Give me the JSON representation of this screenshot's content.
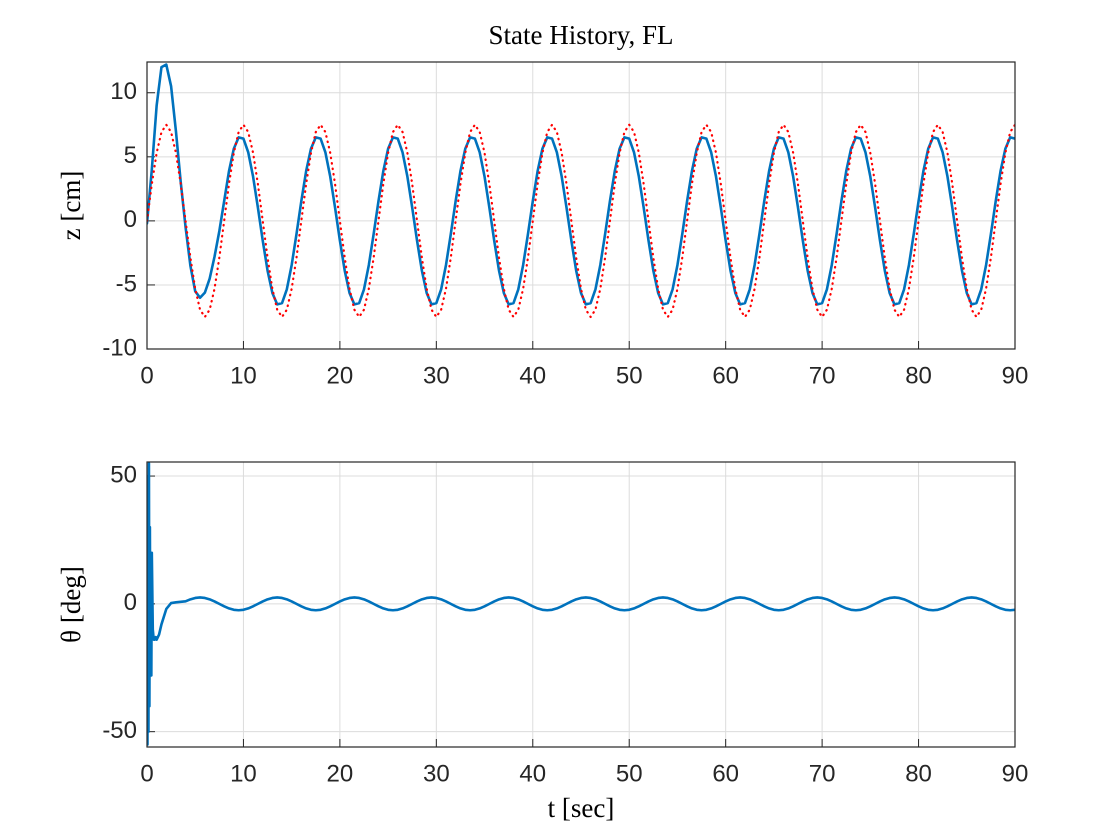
{
  "chart_data": [
    {
      "type": "line",
      "title": "State History, FL",
      "ylabel": "z [cm]",
      "x": [
        0,
        0.5,
        1,
        1.5,
        2,
        2.5,
        3,
        3.5,
        4,
        4.5,
        5,
        5.5,
        6,
        6.5,
        7,
        7.5,
        8,
        8.5,
        9,
        9.5,
        10,
        10.5,
        11,
        11.5,
        12,
        12.5,
        13,
        13.5,
        14,
        14.5,
        15,
        15.5,
        16,
        16.5,
        17,
        17.5,
        18,
        18.5,
        19,
        19.5,
        20,
        20.5,
        21,
        21.5,
        22,
        22.5,
        23,
        23.5,
        24,
        24.5,
        25,
        25.5,
        26,
        26.5,
        27,
        27.5,
        28,
        28.5,
        29,
        29.5,
        30,
        30.5,
        31,
        31.5,
        32,
        32.5,
        33,
        33.5,
        34,
        34.5,
        35,
        35.5,
        36,
        36.5,
        37,
        37.5,
        38,
        38.5,
        39,
        39.5,
        40,
        40.5,
        41,
        41.5,
        42,
        42.5,
        43,
        43.5,
        44,
        44.5,
        45,
        45.5,
        46,
        46.5,
        47,
        47.5,
        48,
        48.5,
        49,
        49.5,
        50,
        50.5,
        51,
        51.5,
        52,
        52.5,
        53,
        53.5,
        54,
        54.5,
        55,
        55.5,
        56,
        56.5,
        57,
        57.5,
        58,
        58.5,
        59,
        59.5,
        60,
        60.5,
        61,
        61.5,
        62,
        62.5,
        63,
        63.5,
        64,
        64.5,
        65,
        65.5,
        66,
        66.5,
        67,
        67.5,
        68,
        68.5,
        69,
        69.5,
        70,
        70.5,
        71,
        71.5,
        72,
        72.5,
        73,
        73.5,
        74,
        74.5,
        75,
        75.5,
        76,
        76.5,
        77,
        77.5,
        78,
        78.5,
        79,
        79.5,
        80,
        80.5,
        81,
        81.5,
        82,
        82.5,
        83,
        83.5,
        84,
        84.5,
        85,
        85.5,
        86,
        86.5,
        87,
        87.5,
        88,
        88.5,
        89,
        89.5,
        90
      ],
      "series": [
        {
          "color": "#0072bd",
          "dash": "solid",
          "values": [
            -0.2,
            4,
            9,
            12,
            12.2,
            10.5,
            7,
            3,
            -0.5,
            -3.5,
            -5.5,
            -6,
            -5.6,
            -4.5,
            -2.8,
            -0.8,
            1.54,
            3.88,
            5.63,
            6.52,
            6.42,
            5.34,
            3.45,
            1.03,
            -1.54,
            -3.88,
            -5.63,
            -6.52,
            -6.42,
            -5.34,
            -3.45,
            -1.03,
            1.54,
            3.88,
            5.63,
            6.52,
            6.42,
            5.34,
            3.45,
            1.03,
            -1.54,
            -3.88,
            -5.63,
            -6.52,
            -6.42,
            -5.34,
            -3.45,
            -1.03,
            1.54,
            3.88,
            5.63,
            6.52,
            6.42,
            5.34,
            3.45,
            1.03,
            -1.54,
            -3.88,
            -5.63,
            -6.52,
            -6.42,
            -5.34,
            -3.45,
            -1.03,
            1.54,
            3.88,
            5.63,
            6.52,
            6.42,
            5.34,
            3.45,
            1.03,
            -1.54,
            -3.88,
            -5.63,
            -6.52,
            -6.42,
            -5.34,
            -3.45,
            -1.03,
            1.54,
            3.88,
            5.63,
            6.52,
            6.42,
            5.34,
            3.45,
            1.03,
            -1.54,
            -3.88,
            -5.63,
            -6.52,
            -6.42,
            -5.34,
            -3.45,
            -1.03,
            1.54,
            3.88,
            5.63,
            6.52,
            6.42,
            5.34,
            3.45,
            1.03,
            -1.54,
            -3.88,
            -5.63,
            -6.52,
            -6.42,
            -5.34,
            -3.45,
            -1.03,
            1.54,
            3.88,
            5.63,
            6.52,
            6.42,
            5.34,
            3.45,
            1.03,
            -1.54,
            -3.88,
            -5.63,
            -6.52,
            -6.42,
            -5.34,
            -3.45,
            -1.03,
            1.54,
            3.88,
            5.63,
            6.52,
            6.42,
            5.34,
            3.45,
            1.03,
            -1.54,
            -3.88,
            -5.63,
            -6.52,
            -6.42,
            -5.34,
            -3.45,
            -1.03,
            1.54,
            3.88,
            5.63,
            6.52,
            6.42,
            5.34,
            3.45,
            1.03,
            -1.54,
            -3.88,
            -5.63,
            -6.52,
            -6.42,
            -5.34,
            -3.45,
            -1.03,
            1.54,
            3.88,
            5.63,
            6.52,
            6.42,
            5.34,
            3.45,
            1.03,
            -1.54,
            -3.88,
            -5.63,
            -6.52,
            -6.42,
            -5.34,
            -3.45,
            -1.03,
            1.54,
            3.88,
            5.63,
            6.52,
            6.42
          ]
        },
        {
          "color": "#ff0000",
          "dash": "dotted",
          "values": [
            0,
            2.87,
            5.3,
            6.93,
            7.5,
            6.93,
            5.3,
            2.87,
            0,
            -2.87,
            -5.3,
            -6.93,
            -7.5,
            -6.93,
            -5.3,
            -2.87,
            0,
            2.87,
            5.3,
            6.93,
            7.5,
            6.93,
            5.3,
            2.87,
            0,
            -2.87,
            -5.3,
            -6.93,
            -7.5,
            -6.93,
            -5.3,
            -2.87,
            0,
            2.87,
            5.3,
            6.93,
            7.5,
            6.93,
            5.3,
            2.87,
            0,
            -2.87,
            -5.3,
            -6.93,
            -7.5,
            -6.93,
            -5.3,
            -2.87,
            0,
            2.87,
            5.3,
            6.93,
            7.5,
            6.93,
            5.3,
            2.87,
            0,
            -2.87,
            -5.3,
            -6.93,
            -7.5,
            -6.93,
            -5.3,
            -2.87,
            0,
            2.87,
            5.3,
            6.93,
            7.5,
            6.93,
            5.3,
            2.87,
            0,
            -2.87,
            -5.3,
            -6.93,
            -7.5,
            -6.93,
            -5.3,
            -2.87,
            0,
            2.87,
            5.3,
            6.93,
            7.5,
            6.93,
            5.3,
            2.87,
            0,
            -2.87,
            -5.3,
            -6.93,
            -7.5,
            -6.93,
            -5.3,
            -2.87,
            0,
            2.87,
            5.3,
            6.93,
            7.5,
            6.93,
            5.3,
            2.87,
            0,
            -2.87,
            -5.3,
            -6.93,
            -7.5,
            -6.93,
            -5.3,
            -2.87,
            0,
            2.87,
            5.3,
            6.93,
            7.5,
            6.93,
            5.3,
            2.87,
            0,
            -2.87,
            -5.3,
            -6.93,
            -7.5,
            -6.93,
            -5.3,
            -2.87,
            0,
            2.87,
            5.3,
            6.93,
            7.5,
            6.93,
            5.3,
            2.87,
            0,
            -2.87,
            -5.3,
            -6.93,
            -7.5,
            -6.93,
            -5.3,
            -2.87,
            0,
            2.87,
            5.3,
            6.93,
            7.5,
            6.93,
            5.3,
            2.87,
            0,
            -2.87,
            -5.3,
            -6.93,
            -7.5,
            -6.93,
            -5.3,
            -2.87,
            0,
            2.87,
            5.3,
            6.93,
            7.5,
            6.93,
            5.3,
            2.87,
            0,
            -2.87,
            -5.3,
            -6.93,
            -7.5,
            -6.93,
            -5.3,
            -2.87,
            0,
            2.87,
            5.3,
            6.93,
            7.5
          ]
        }
      ],
      "xlim": [
        0,
        90
      ],
      "xticks": [
        0,
        10,
        20,
        30,
        40,
        50,
        60,
        70,
        80,
        90
      ],
      "ylim": [
        -10,
        12.4
      ],
      "yticks": [
        -10,
        -5,
        0,
        5,
        10
      ],
      "grid": true
    },
    {
      "type": "line",
      "ylabel": "θ [deg]",
      "xlabel": "t [sec]",
      "x": [
        0,
        0.05,
        0.1,
        0.15,
        0.2,
        0.25,
        0.3,
        0.35,
        0.4,
        0.45,
        0.5,
        0.6,
        0.7,
        0.8,
        0.9,
        1,
        1.25,
        1.5,
        2,
        2.5,
        3,
        3.5,
        4,
        4.5,
        5,
        5.5,
        6,
        6.5,
        7,
        7.5,
        8,
        8.5,
        9,
        9.5,
        10,
        10.5,
        11,
        11.5,
        12,
        12.5,
        13,
        13.5,
        14,
        14.5,
        15,
        15.5,
        16,
        16.5,
        17,
        17.5,
        18,
        18.5,
        19,
        19.5,
        20,
        20.5,
        21,
        21.5,
        22,
        22.5,
        23,
        23.5,
        24,
        24.5,
        25,
        25.5,
        26,
        26.5,
        27,
        27.5,
        28,
        28.5,
        29,
        29.5,
        30,
        30.5,
        31,
        31.5,
        32,
        32.5,
        33,
        33.5,
        34,
        34.5,
        35,
        35.5,
        36,
        36.5,
        37,
        37.5,
        38,
        38.5,
        39,
        39.5,
        40,
        40.5,
        41,
        41.5,
        42,
        42.5,
        43,
        43.5,
        44,
        44.5,
        45,
        45.5,
        46,
        46.5,
        47,
        47.5,
        48,
        48.5,
        49,
        49.5,
        50,
        50.5,
        51,
        51.5,
        52,
        52.5,
        53,
        53.5,
        54,
        54.5,
        55,
        55.5,
        56,
        56.5,
        57,
        57.5,
        58,
        58.5,
        59,
        59.5,
        60,
        60.5,
        61,
        61.5,
        62,
        62.5,
        63,
        63.5,
        64,
        64.5,
        65,
        65.5,
        66,
        66.5,
        67,
        67.5,
        68,
        68.5,
        69,
        69.5,
        70,
        70.5,
        71,
        71.5,
        72,
        72.5,
        73,
        73.5,
        74,
        74.5,
        75,
        75.5,
        76,
        76.5,
        77,
        77.5,
        78,
        78.5,
        79,
        79.5,
        80,
        80.5,
        81,
        81.5,
        82,
        82.5,
        83,
        83.5,
        84,
        84.5,
        85,
        85.5,
        86,
        86.5,
        87,
        87.5,
        88,
        88.5,
        89,
        89.5,
        90
      ],
      "series": [
        {
          "color": "#0072bd",
          "dash": "solid",
          "values": [
            0,
            -55,
            50,
            -50,
            55,
            -40,
            30,
            -20,
            10,
            -28,
            20,
            -10,
            -14,
            -14,
            -13,
            -14,
            -12,
            -8,
            -2,
            0.3,
            0.6,
            0.8,
            1.0,
            1.77,
            2.31,
            2.5,
            2.31,
            1.77,
            0.96,
            0,
            -0.96,
            -1.77,
            -2.31,
            -2.5,
            -2.31,
            -1.77,
            -0.96,
            0,
            0.96,
            1.77,
            2.31,
            2.5,
            2.31,
            1.77,
            0.96,
            0,
            -0.96,
            -1.77,
            -2.31,
            -2.5,
            -2.31,
            -1.77,
            -0.96,
            0,
            0.96,
            1.77,
            2.31,
            2.5,
            2.31,
            1.77,
            0.96,
            0,
            -0.96,
            -1.77,
            -2.31,
            -2.5,
            -2.31,
            -1.77,
            -0.96,
            0,
            0.96,
            1.77,
            2.31,
            2.5,
            2.31,
            1.77,
            0.96,
            0,
            -0.96,
            -1.77,
            -2.31,
            -2.5,
            -2.31,
            -1.77,
            -0.96,
            0,
            0.96,
            1.77,
            2.31,
            2.5,
            2.31,
            1.77,
            0.96,
            0,
            -0.96,
            -1.77,
            -2.31,
            -2.5,
            -2.31,
            -1.77,
            -0.96,
            0,
            0.96,
            1.77,
            2.31,
            2.5,
            2.31,
            1.77,
            0.96,
            0,
            -0.96,
            -1.77,
            -2.31,
            -2.5,
            -2.31,
            -1.77,
            -0.96,
            0,
            0.96,
            1.77,
            2.31,
            2.5,
            2.31,
            1.77,
            0.96,
            0,
            -0.96,
            -1.77,
            -2.31,
            -2.5,
            -2.31,
            -1.77,
            -0.96,
            0,
            0.96,
            1.77,
            2.31,
            2.5,
            2.31,
            1.77,
            0.96,
            0,
            -0.96,
            -1.77,
            -2.31,
            -2.5,
            -2.31,
            -1.77,
            -0.96,
            0,
            0.96,
            1.77,
            2.31,
            2.5,
            2.31,
            1.77,
            0.96,
            0,
            -0.96,
            -1.77,
            -2.31,
            -2.5,
            -2.31,
            -1.77,
            -0.96,
            0,
            0.96,
            1.77,
            2.31,
            2.5,
            2.31,
            1.77,
            0.96,
            0,
            -0.96,
            -1.77,
            -2.31,
            -2.5,
            -2.31,
            -1.77,
            -0.96,
            0,
            0.96,
            1.77,
            2.31,
            2.5,
            2.31,
            1.77,
            0.96,
            0,
            -0.96,
            -1.77,
            -2.31,
            -2.5,
            -2.31
          ]
        }
      ],
      "xlim": [
        0,
        90
      ],
      "xticks": [
        0,
        10,
        20,
        30,
        40,
        50,
        60,
        70,
        80,
        90
      ],
      "ylim": [
        -56,
        55.5
      ],
      "yticks": [
        -50,
        0,
        50
      ],
      "grid": true
    }
  ]
}
